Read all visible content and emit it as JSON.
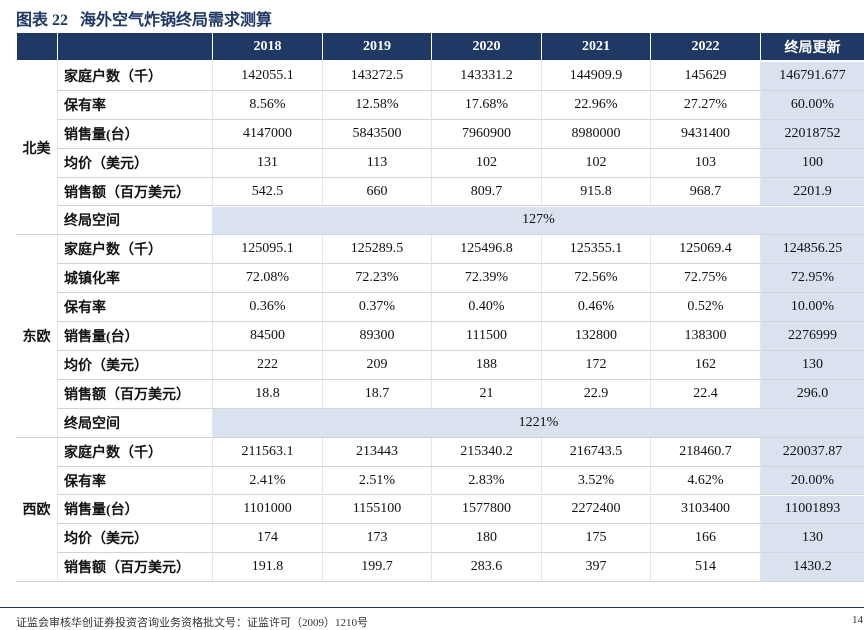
{
  "header": {
    "label": "图表 22",
    "title": "海外空气炸锅终局需求测算"
  },
  "table": {
    "columns": [
      "2018",
      "2019",
      "2020",
      "2021",
      "2022",
      "终局更新"
    ],
    "groups": [
      {
        "region": "北美",
        "rows": [
          {
            "label": "家庭户数（千）",
            "cells": [
              "142055.1",
              "143272.5",
              "143331.2",
              "144909.9",
              "145629",
              "146791.677"
            ]
          },
          {
            "label": "保有率",
            "cells": [
              "8.56%",
              "12.58%",
              "17.68%",
              "22.96%",
              "27.27%",
              "60.00%"
            ]
          },
          {
            "label": "销售量(台）",
            "cells": [
              "4147000",
              "5843500",
              "7960900",
              "8980000",
              "9431400",
              "22018752"
            ]
          },
          {
            "label": "均价（美元）",
            "cells": [
              "131",
              "113",
              "102",
              "102",
              "103",
              "100"
            ]
          },
          {
            "label": "销售额（百万美元）",
            "cells": [
              "542.5",
              "660",
              "809.7",
              "915.8",
              "968.7",
              "2201.9"
            ]
          },
          {
            "label": "终局空间",
            "span": "127%"
          }
        ]
      },
      {
        "region": "东欧",
        "rows": [
          {
            "label": "家庭户数（千）",
            "cells": [
              "125095.1",
              "125289.5",
              "125496.8",
              "125355.1",
              "125069.4",
              "124856.25"
            ]
          },
          {
            "label": "城镇化率",
            "cells": [
              "72.08%",
              "72.23%",
              "72.39%",
              "72.56%",
              "72.75%",
              "72.95%"
            ]
          },
          {
            "label": "保有率",
            "cells": [
              "0.36%",
              "0.37%",
              "0.40%",
              "0.46%",
              "0.52%",
              "10.00%"
            ]
          },
          {
            "label": "销售量(台）",
            "cells": [
              "84500",
              "89300",
              "111500",
              "132800",
              "138300",
              "2276999"
            ]
          },
          {
            "label": "均价（美元）",
            "cells": [
              "222",
              "209",
              "188",
              "172",
              "162",
              "130"
            ]
          },
          {
            "label": "销售额（百万美元）",
            "cells": [
              "18.8",
              "18.7",
              "21",
              "22.9",
              "22.4",
              "296.0"
            ]
          },
          {
            "label": "终局空间",
            "span": "1221%"
          }
        ]
      },
      {
        "region": "西欧",
        "rows": [
          {
            "label": "家庭户数（千）",
            "cells": [
              "211563.1",
              "213443",
              "215340.2",
              "216743.5",
              "218460.7",
              "220037.87"
            ]
          },
          {
            "label": "保有率",
            "cells": [
              "2.41%",
              "2.51%",
              "2.83%",
              "3.52%",
              "4.62%",
              "20.00%"
            ]
          },
          {
            "label": "销售量(台）",
            "cells": [
              "1101000",
              "1155100",
              "1577800",
              "2272400",
              "3103400",
              "11001893"
            ]
          },
          {
            "label": "均价（美元）",
            "cells": [
              "174",
              "173",
              "180",
              "175",
              "166",
              "130"
            ]
          },
          {
            "label": "销售额（百万美元）",
            "cells": [
              "191.8",
              "199.7",
              "283.6",
              "397",
              "514",
              "1430.2"
            ]
          }
        ]
      }
    ]
  },
  "footer": {
    "text": "证监会审核华创证券投资咨询业务资格批文号：证监许可（2009）1210号",
    "page": "14"
  }
}
